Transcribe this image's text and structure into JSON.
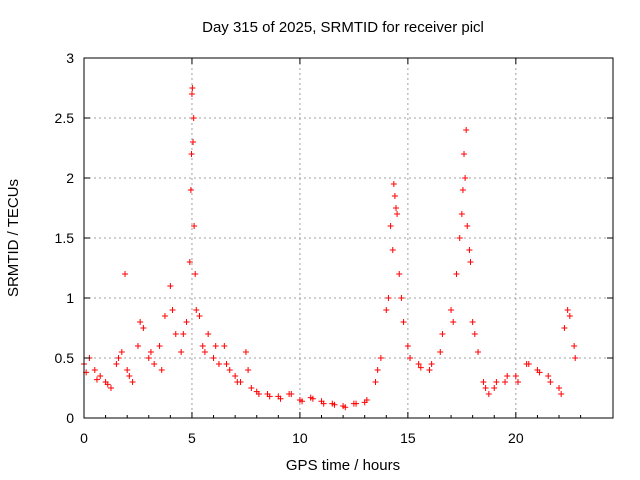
{
  "chart_data": {
    "type": "scatter",
    "title": "Day 315 of 2025, SRMTID for receiver picl",
    "xlabel": "GPS time / hours",
    "ylabel": "SRMTID / TECUs",
    "xlim": [
      0,
      24.5
    ],
    "ylim": [
      0,
      3
    ],
    "xticks": [
      0,
      5,
      10,
      15,
      20
    ],
    "xtick_labels": [
      "0",
      "5",
      "10",
      "15",
      "20"
    ],
    "yticks": [
      0,
      0.5,
      1,
      1.5,
      2,
      2.5,
      3
    ],
    "ytick_labels": [
      "0",
      "0.5",
      "1",
      "1.5",
      "2",
      "2.5",
      "3"
    ],
    "grid": true,
    "marker": "+",
    "color": "#ff0000",
    "series": [
      {
        "name": "SRMTID",
        "x": [
          0.0,
          0.25,
          0.5,
          0.75,
          1.0,
          1.25,
          1.5,
          1.75,
          1.9,
          2.0,
          2.25,
          2.5,
          2.75,
          3.0,
          3.25,
          3.5,
          3.75,
          4.0,
          4.25,
          4.5,
          4.75,
          4.9,
          5.0,
          5.05,
          5.1,
          5.2,
          5.35,
          5.5,
          5.75,
          6.0,
          6.25,
          6.5,
          6.75,
          7.0,
          7.25,
          7.5,
          7.75,
          8.0,
          8.5,
          9.0,
          9.5,
          10.0,
          10.5,
          11.0,
          11.5,
          12.0,
          12.5,
          13.0,
          13.5,
          13.75,
          14.0,
          14.2,
          14.4,
          14.6,
          14.8,
          15.0,
          15.5,
          16.0,
          16.5,
          17.0,
          17.25,
          17.5,
          17.6,
          17.75,
          17.9,
          18.0,
          18.25,
          18.5,
          18.75,
          19.0,
          19.5,
          20.0,
          20.5,
          21.0,
          21.5,
          22.0,
          22.25,
          22.5,
          22.75,
          0.1,
          0.6,
          1.1,
          1.6,
          2.1,
          2.6,
          3.1,
          3.6,
          4.1,
          4.6,
          4.95,
          5.15,
          5.6,
          6.1,
          6.6,
          7.1,
          7.6,
          8.1,
          8.6,
          9.1,
          9.6,
          10.1,
          10.6,
          11.1,
          11.6,
          12.1,
          12.6,
          13.1,
          13.6,
          14.1,
          14.3,
          14.5,
          14.7,
          15.1,
          15.6,
          16.1,
          16.6,
          17.1,
          17.4,
          17.7,
          17.85,
          18.1,
          18.6,
          19.1,
          19.6,
          20.1,
          20.6,
          21.1,
          21.6,
          22.1,
          22.4,
          22.7,
          5.02,
          5.08,
          4.98,
          17.55,
          17.65,
          14.35,
          14.45
        ],
        "y": [
          0.45,
          0.5,
          0.4,
          0.35,
          0.3,
          0.25,
          0.45,
          0.55,
          1.2,
          0.4,
          0.3,
          0.6,
          0.75,
          0.5,
          0.45,
          0.6,
          0.85,
          1.1,
          0.7,
          0.55,
          0.8,
          1.3,
          2.7,
          2.3,
          1.6,
          0.9,
          0.85,
          0.6,
          0.7,
          0.5,
          0.45,
          0.6,
          0.4,
          0.35,
          0.3,
          0.55,
          0.25,
          0.22,
          0.2,
          0.18,
          0.2,
          0.15,
          0.17,
          0.14,
          0.12,
          0.1,
          0.12,
          0.13,
          0.3,
          0.5,
          0.9,
          1.6,
          1.85,
          1.2,
          0.8,
          0.6,
          0.45,
          0.4,
          0.55,
          0.9,
          1.2,
          1.7,
          2.2,
          1.6,
          1.3,
          0.8,
          0.55,
          0.3,
          0.2,
          0.25,
          0.3,
          0.35,
          0.45,
          0.4,
          0.35,
          0.25,
          0.75,
          0.85,
          0.5,
          0.38,
          0.32,
          0.28,
          0.5,
          0.35,
          0.8,
          0.55,
          0.4,
          0.9,
          0.7,
          1.9,
          1.2,
          0.55,
          0.6,
          0.45,
          0.3,
          0.4,
          0.2,
          0.18,
          0.16,
          0.2,
          0.14,
          0.16,
          0.12,
          0.11,
          0.09,
          0.12,
          0.15,
          0.4,
          1.0,
          1.4,
          1.7,
          1.0,
          0.5,
          0.42,
          0.45,
          0.7,
          0.8,
          1.5,
          2.4,
          1.4,
          0.7,
          0.25,
          0.3,
          0.35,
          0.3,
          0.45,
          0.38,
          0.3,
          0.2,
          0.9,
          0.6,
          2.75,
          2.5,
          2.2,
          1.9,
          2.0,
          1.95,
          1.75
        ]
      }
    ]
  }
}
